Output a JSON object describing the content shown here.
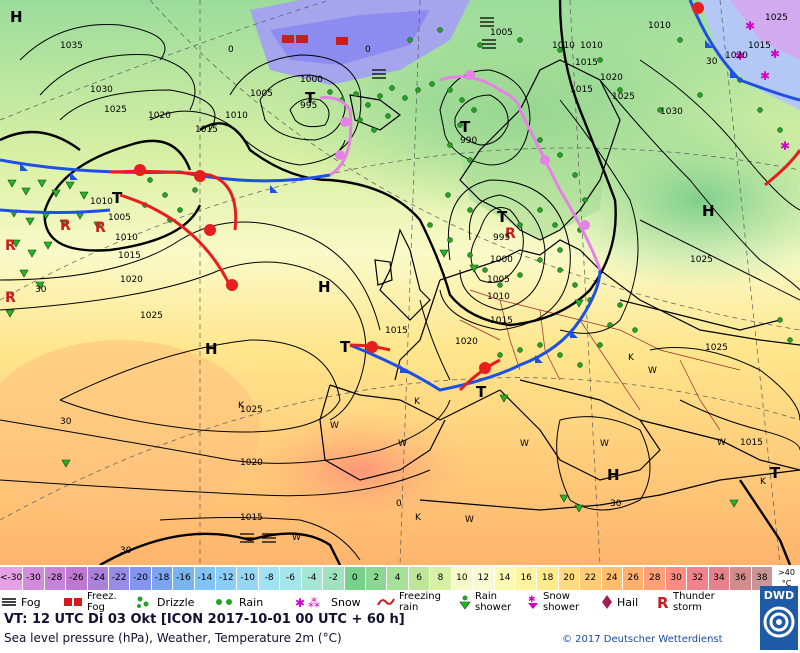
{
  "map": {
    "pressure_centres": [
      {
        "letter": "H",
        "id": "h-greenland"
      },
      {
        "letter": "T",
        "id": "t-iceland"
      },
      {
        "letter": "T",
        "id": "t-norway"
      },
      {
        "letter": "T",
        "id": "t-atlantic"
      },
      {
        "letter": "T",
        "id": "t-scandinavia-south"
      },
      {
        "letter": "H",
        "id": "h-central-atlantic"
      },
      {
        "letter": "H",
        "id": "h-azores"
      },
      {
        "letter": "T",
        "id": "t-biscay"
      },
      {
        "letter": "H",
        "id": "h-russia"
      },
      {
        "letter": "H",
        "id": "h-balkans"
      },
      {
        "letter": "T",
        "id": "t-black-sea"
      },
      {
        "letter": "T",
        "id": "t-italy"
      }
    ],
    "isobar_labels": [
      "1035",
      "1030",
      "1025",
      "1020",
      "1015",
      "1010",
      "1005",
      "1000",
      "995",
      "990",
      "1005",
      "1010",
      "1015",
      "1010",
      "1020",
      "1015",
      "1025",
      "1020",
      "1025",
      "1015",
      "1020",
      "1015",
      "1005",
      "1000",
      "995",
      "1010",
      "1015",
      "1020",
      "1025",
      "1005",
      "1010",
      "1015",
      "1030",
      "1025",
      "1015",
      "1010",
      "1020",
      "1025",
      "1015",
      "1025",
      "1010"
    ],
    "isotherm_labels": [
      "0",
      "0",
      "0",
      "30",
      "30",
      "30",
      "30",
      "30"
    ],
    "wx_letters": [
      "K",
      "K",
      "W",
      "W",
      "W",
      "K",
      "W",
      "W",
      "W",
      "K",
      "K",
      "W",
      "W"
    ]
  },
  "scale": {
    "steps": [
      {
        "label": "<-30",
        "color": "#e6a0e6"
      },
      {
        "label": "-30",
        "color": "#d28cdc"
      },
      {
        "label": "-28",
        "color": "#c882d7"
      },
      {
        "label": "-26",
        "color": "#be78d2"
      },
      {
        "label": "-24",
        "color": "#aa82dc"
      },
      {
        "label": "-22",
        "color": "#968ce6"
      },
      {
        "label": "-20",
        "color": "#8296f0"
      },
      {
        "label": "-18",
        "color": "#7ca5f0"
      },
      {
        "label": "-16",
        "color": "#78b4f0"
      },
      {
        "label": "-14",
        "color": "#82c3f5"
      },
      {
        "label": "-12",
        "color": "#8ccdf5"
      },
      {
        "label": "-10",
        "color": "#96d7f5"
      },
      {
        "label": "-8",
        "color": "#a0e1f5"
      },
      {
        "label": "-6",
        "color": "#a5e6eb"
      },
      {
        "label": "-4",
        "color": "#a5e6d2"
      },
      {
        "label": "-2",
        "color": "#a0e1be"
      },
      {
        "label": "0",
        "color": "#78d28c"
      },
      {
        "label": "2",
        "color": "#8cd791"
      },
      {
        "label": "4",
        "color": "#a5e196"
      },
      {
        "label": "6",
        "color": "#bee69b"
      },
      {
        "label": "8",
        "color": "#d7f0a5"
      },
      {
        "label": "10",
        "color": "#f5fac8"
      },
      {
        "label": "12",
        "color": "#fafad2"
      },
      {
        "label": "14",
        "color": "#fafab4"
      },
      {
        "label": "16",
        "color": "#fff5a0"
      },
      {
        "label": "18",
        "color": "#ffeb8c"
      },
      {
        "label": "20",
        "color": "#ffdc82"
      },
      {
        "label": "22",
        "color": "#ffcd78"
      },
      {
        "label": "24",
        "color": "#ffbe6e"
      },
      {
        "label": "26",
        "color": "#ffaf6e"
      },
      {
        "label": "28",
        "color": "#ffa078"
      },
      {
        "label": "30",
        "color": "#ff8c82"
      },
      {
        "label": "32",
        "color": "#f0828c"
      },
      {
        "label": "34",
        "color": "#e6828c"
      },
      {
        "label": "36",
        "color": "#d28c8c"
      },
      {
        "label": "38",
        "color": "#c89696"
      }
    ],
    "unit_top": ">40",
    "unit_bottom": "°C"
  },
  "weather_legend": [
    {
      "label": "Fog",
      "icon": "fog-icon"
    },
    {
      "label": "Freez. Fog",
      "icon": "freezing-fog-icon"
    },
    {
      "label": "Drizzle",
      "icon": "drizzle-icon"
    },
    {
      "label": "Rain",
      "icon": "rain-icon"
    },
    {
      "label": "Snow",
      "icon": "snow-icon"
    },
    {
      "label": "Freezing rain",
      "icon": "freezing-rain-icon"
    },
    {
      "label": "Rain shower",
      "icon": "rain-shower-icon"
    },
    {
      "label": "Snow shower",
      "icon": "snow-shower-icon"
    },
    {
      "label": "Hail",
      "icon": "hail-icon"
    },
    {
      "label": "Thunder storm",
      "icon": "thunderstorm-icon"
    }
  ],
  "footer": {
    "valid_time": "VT: 12 UTC Di  03 Okt [ICON 2017-10-01  00 UTC + 60 h]",
    "description": "Sea level pressure (hPa), Weather, Temperature 2m (°C)",
    "copyright": "© 2017 Deutscher Wetterdienst",
    "logo_text": "DWD"
  }
}
